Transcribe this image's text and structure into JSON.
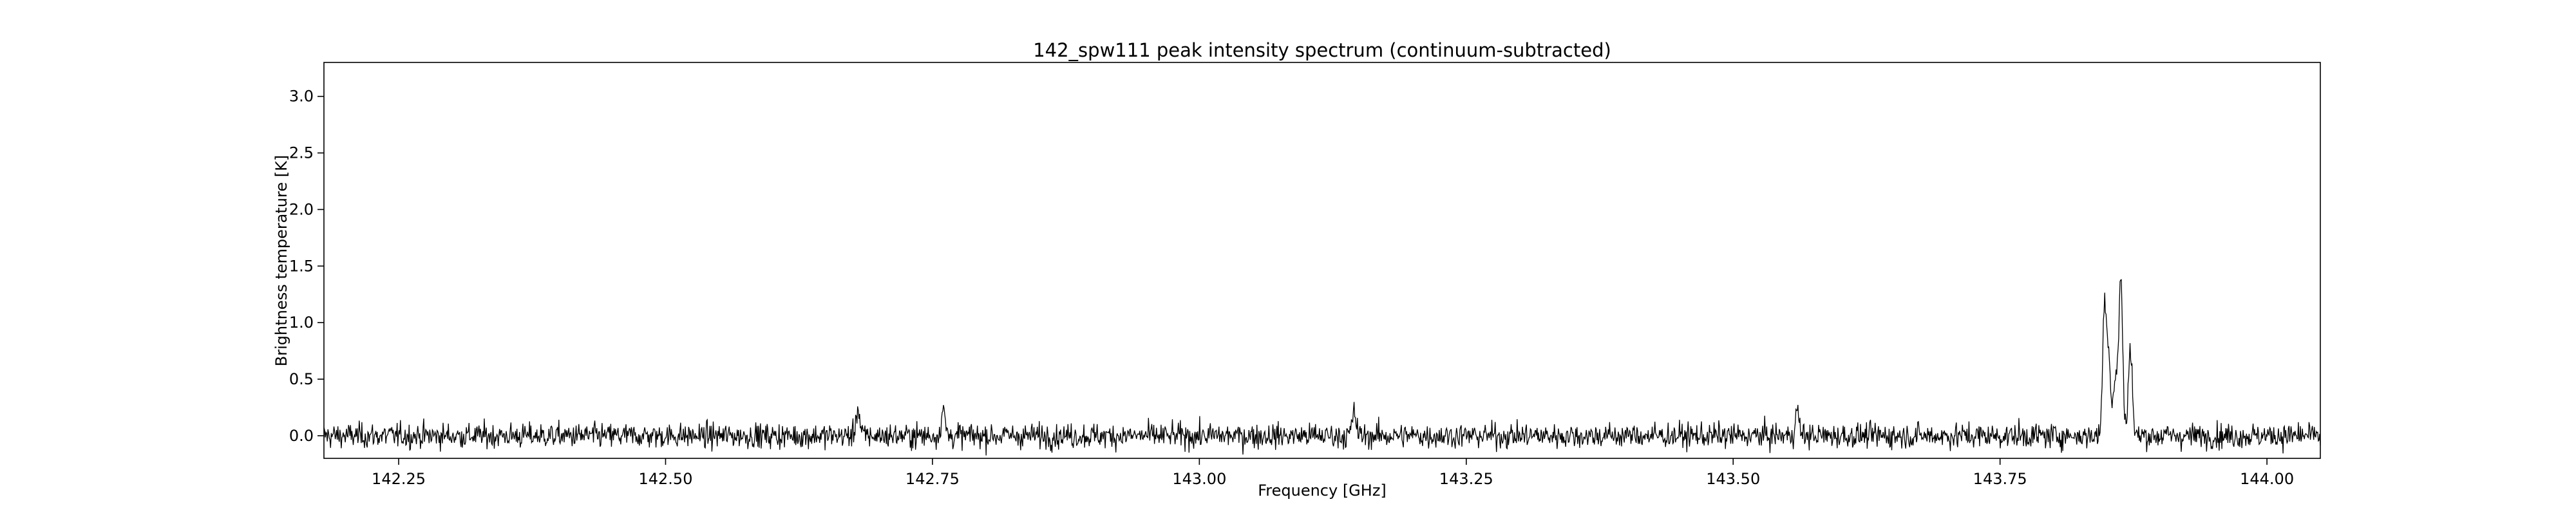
{
  "chart_data": {
    "type": "line",
    "title": "142_spw111 peak intensity spectrum (continuum-subtracted)",
    "xlabel": "Frequency [GHz]",
    "ylabel": "Brightness temperature [K]",
    "xlim": [
      142.18,
      144.05
    ],
    "ylim": [
      -0.2,
      3.3
    ],
    "xticks": [
      "142.25",
      "142.50",
      "142.75",
      "143.00",
      "143.25",
      "143.50",
      "143.75",
      "144.00"
    ],
    "xtick_values": [
      142.25,
      142.5,
      142.75,
      143.0,
      143.25,
      143.5,
      143.75,
      144.0
    ],
    "yticks": [
      "0.0",
      "0.5",
      "1.0",
      "1.5",
      "2.0",
      "2.5",
      "3.0"
    ],
    "ytick_values": [
      0.0,
      0.5,
      1.0,
      1.5,
      2.0,
      2.5,
      3.0
    ],
    "grid": false,
    "legend": "none",
    "line_color": "#000000",
    "series": [
      {
        "noise_rms_K": 0.055,
        "baseline_K": 0.0,
        "lines": [
          {
            "freq": 142.68,
            "peak": 0.24
          },
          {
            "freq": 142.76,
            "peak": 0.23
          },
          {
            "freq": 143.145,
            "peak": 0.21
          },
          {
            "freq": 143.56,
            "peak": 0.22
          },
          {
            "freq": 143.848,
            "peak": 1.18
          },
          {
            "freq": 143.852,
            "peak": 0.65
          },
          {
            "freq": 143.858,
            "peak": 0.5
          },
          {
            "freq": 143.863,
            "peak": 1.41
          },
          {
            "freq": 143.872,
            "peak": 0.8
          }
        ]
      }
    ]
  }
}
